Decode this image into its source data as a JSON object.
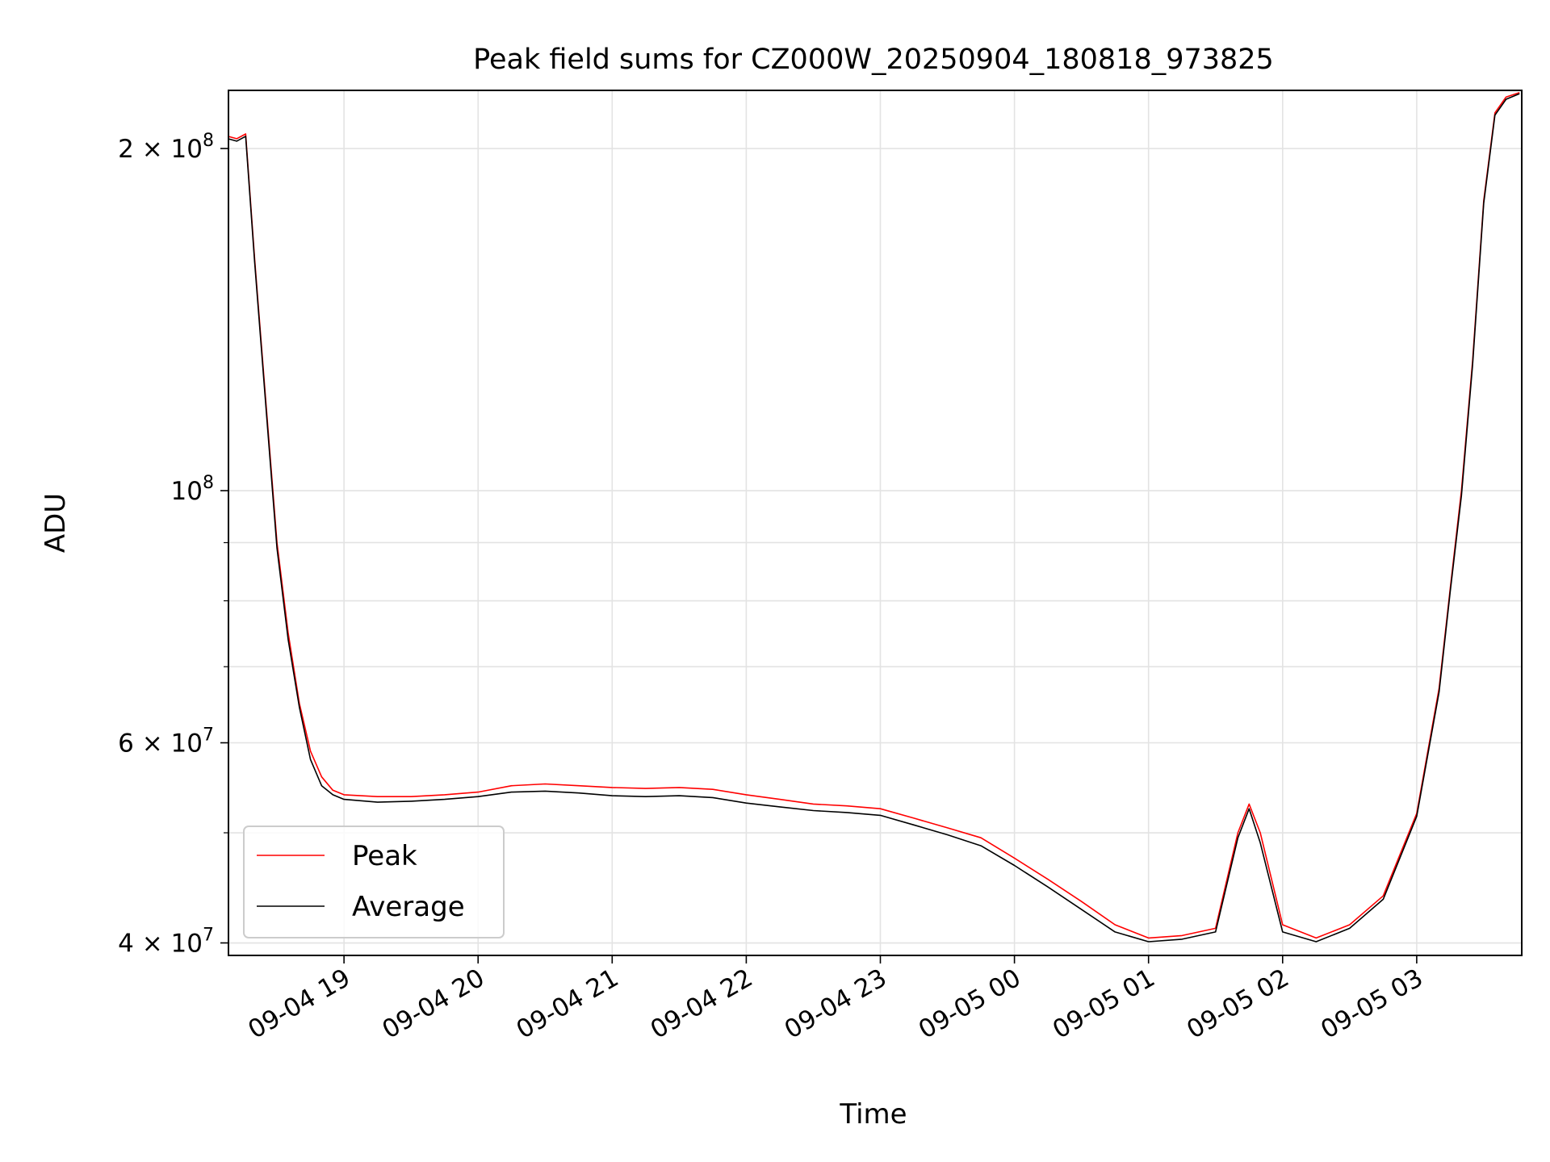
{
  "chart_data": {
    "type": "line",
    "title": "Peak field sums for CZ000W_20250904_180818_973825",
    "xlabel": "Time",
    "ylabel": "ADU",
    "y_scale": "log",
    "ylim": [
      39000000,
      225000000
    ],
    "xlim": [
      "2025-09-04 18:08:18",
      "2025-09-05 03:47:00"
    ],
    "grid": true,
    "legend_position": "lower-left",
    "x_ticks": [
      {
        "t": "2025-09-04 19:00",
        "label": "09-04 19"
      },
      {
        "t": "2025-09-04 20:00",
        "label": "09-04 20"
      },
      {
        "t": "2025-09-04 21:00",
        "label": "09-04 21"
      },
      {
        "t": "2025-09-04 22:00",
        "label": "09-04 22"
      },
      {
        "t": "2025-09-04 23:00",
        "label": "09-04 23"
      },
      {
        "t": "2025-09-05 00:00",
        "label": "09-05 00"
      },
      {
        "t": "2025-09-05 01:00",
        "label": "09-05 01"
      },
      {
        "t": "2025-09-05 02:00",
        "label": "09-05 02"
      },
      {
        "t": "2025-09-05 03:00",
        "label": "09-05 03"
      }
    ],
    "y_ticks": [
      {
        "v": 40000000,
        "mant": "4",
        "exp": "7",
        "prefix": true
      },
      {
        "v": 60000000,
        "mant": "6",
        "exp": "7",
        "prefix": true
      },
      {
        "v": 100000000,
        "mant": "",
        "exp": "8",
        "prefix": false
      },
      {
        "v": 200000000,
        "mant": "2",
        "exp": "8",
        "prefix": true
      }
    ],
    "y_minor_ticks": [
      50000000,
      70000000,
      80000000,
      90000000
    ],
    "series": [
      {
        "name": "Peak",
        "color": "#ff0000",
        "x": [
          "2025-09-04 18:08",
          "2025-09-04 18:12",
          "2025-09-04 18:16",
          "2025-09-04 18:20",
          "2025-09-04 18:25",
          "2025-09-04 18:30",
          "2025-09-04 18:35",
          "2025-09-04 18:40",
          "2025-09-04 18:45",
          "2025-09-04 18:50",
          "2025-09-04 18:55",
          "2025-09-04 19:00",
          "2025-09-04 19:15",
          "2025-09-04 19:30",
          "2025-09-04 19:45",
          "2025-09-04 20:00",
          "2025-09-04 20:15",
          "2025-09-04 20:30",
          "2025-09-04 20:45",
          "2025-09-04 21:00",
          "2025-09-04 21:15",
          "2025-09-04 21:30",
          "2025-09-04 21:45",
          "2025-09-04 22:00",
          "2025-09-04 22:15",
          "2025-09-04 22:30",
          "2025-09-04 22:45",
          "2025-09-04 23:00",
          "2025-09-04 23:15",
          "2025-09-04 23:30",
          "2025-09-04 23:45",
          "2025-09-05 00:00",
          "2025-09-05 00:15",
          "2025-09-05 00:30",
          "2025-09-05 00:45",
          "2025-09-05 01:00",
          "2025-09-05 01:15",
          "2025-09-05 01:30",
          "2025-09-05 01:40",
          "2025-09-05 01:45",
          "2025-09-05 01:50",
          "2025-09-05 02:00",
          "2025-09-05 02:15",
          "2025-09-05 02:30",
          "2025-09-05 02:45",
          "2025-09-05 03:00",
          "2025-09-05 03:10",
          "2025-09-05 03:15",
          "2025-09-05 03:20",
          "2025-09-05 03:25",
          "2025-09-05 03:30",
          "2025-09-05 03:35",
          "2025-09-05 03:40",
          "2025-09-05 03:46"
        ],
        "y": [
          205000000,
          204000000,
          206000000,
          160000000,
          120000000,
          90000000,
          75000000,
          65000000,
          59000000,
          56000000,
          54500000,
          54000000,
          53800000,
          53800000,
          54000000,
          54300000,
          55000000,
          55200000,
          55000000,
          54800000,
          54700000,
          54800000,
          54600000,
          54000000,
          53500000,
          53000000,
          52800000,
          52500000,
          51500000,
          50500000,
          49500000,
          47500000,
          45500000,
          43500000,
          41500000,
          40400000,
          40600000,
          41200000,
          50000000,
          53000000,
          50000000,
          41500000,
          40400000,
          41500000,
          44000000,
          52000000,
          67000000,
          82000000,
          100000000,
          130000000,
          180000000,
          215000000,
          222000000,
          224000000
        ]
      },
      {
        "name": "Average",
        "color": "#000000",
        "x": [
          "2025-09-04 18:08",
          "2025-09-04 18:12",
          "2025-09-04 18:16",
          "2025-09-04 18:20",
          "2025-09-04 18:25",
          "2025-09-04 18:30",
          "2025-09-04 18:35",
          "2025-09-04 18:40",
          "2025-09-04 18:45",
          "2025-09-04 18:50",
          "2025-09-04 18:55",
          "2025-09-04 19:00",
          "2025-09-04 19:15",
          "2025-09-04 19:30",
          "2025-09-04 19:45",
          "2025-09-04 20:00",
          "2025-09-04 20:15",
          "2025-09-04 20:30",
          "2025-09-04 20:45",
          "2025-09-04 21:00",
          "2025-09-04 21:15",
          "2025-09-04 21:30",
          "2025-09-04 21:45",
          "2025-09-04 22:00",
          "2025-09-04 22:15",
          "2025-09-04 22:30",
          "2025-09-04 22:45",
          "2025-09-04 23:00",
          "2025-09-04 23:15",
          "2025-09-04 23:30",
          "2025-09-04 23:45",
          "2025-09-05 00:00",
          "2025-09-05 00:15",
          "2025-09-05 00:30",
          "2025-09-05 00:45",
          "2025-09-05 01:00",
          "2025-09-05 01:15",
          "2025-09-05 01:30",
          "2025-09-05 01:40",
          "2025-09-05 01:45",
          "2025-09-05 01:50",
          "2025-09-05 02:00",
          "2025-09-05 02:15",
          "2025-09-05 02:30",
          "2025-09-05 02:45",
          "2025-09-05 03:00",
          "2025-09-05 03:10",
          "2025-09-05 03:15",
          "2025-09-05 03:20",
          "2025-09-05 03:25",
          "2025-09-05 03:30",
          "2025-09-05 03:35",
          "2025-09-05 03:40",
          "2025-09-05 03:46"
        ],
        "y": [
          204000000,
          203000000,
          205000000,
          159000000,
          119000000,
          89000000,
          74000000,
          64500000,
          58000000,
          55000000,
          54000000,
          53500000,
          53200000,
          53300000,
          53500000,
          53800000,
          54300000,
          54400000,
          54200000,
          53900000,
          53800000,
          53900000,
          53700000,
          53100000,
          52700000,
          52300000,
          52100000,
          51800000,
          50800000,
          49800000,
          48700000,
          46800000,
          44800000,
          42800000,
          40900000,
          40100000,
          40300000,
          40900000,
          49500000,
          52500000,
          49000000,
          40900000,
          40100000,
          41200000,
          43700000,
          51700000,
          66500000,
          81500000,
          99000000,
          129000000,
          179000000,
          214000000,
          221000000,
          223500000
        ]
      }
    ]
  }
}
